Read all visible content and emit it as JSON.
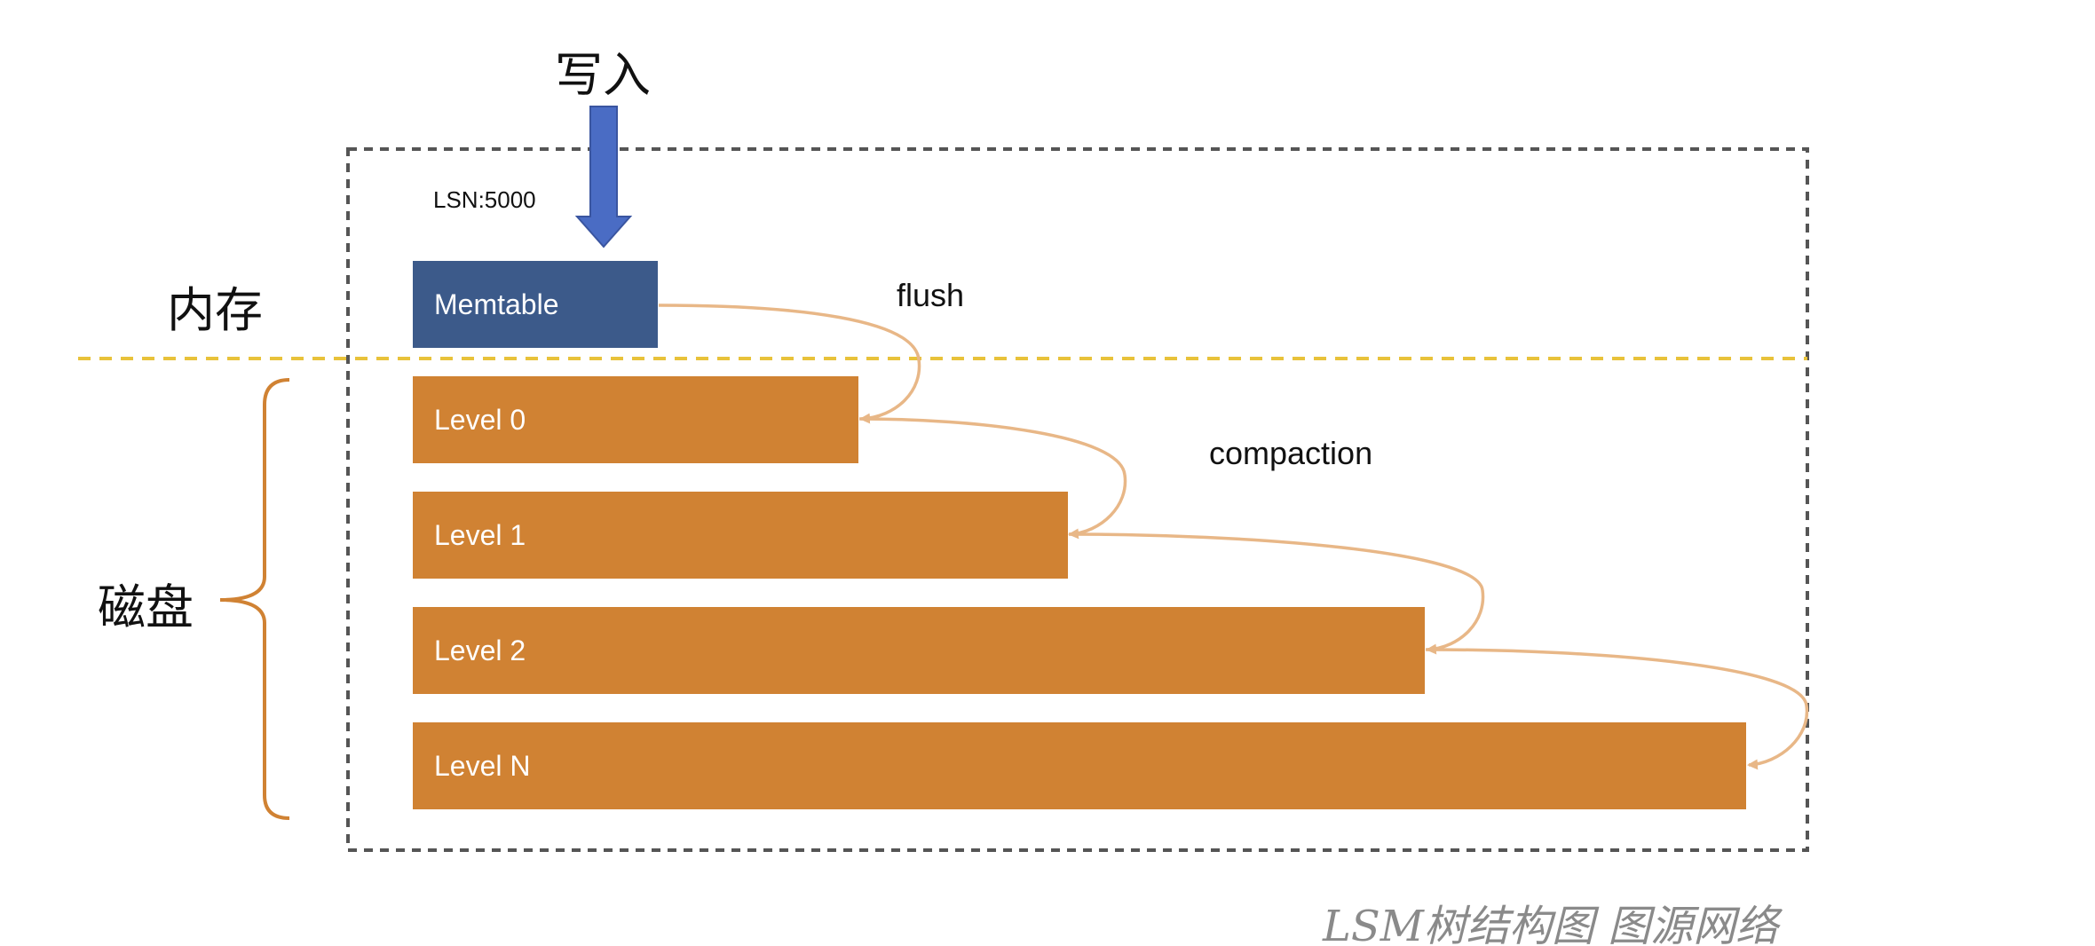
{
  "diagram": {
    "write_label": "写入",
    "lsn_label": "LSN:5000",
    "memory_label": "内存",
    "disk_label": "磁盘",
    "flush_label": "flush",
    "compaction_label": "compaction",
    "caption": "LSM树结构图 图源网络",
    "memtable_label": "Memtable",
    "levels": [
      "Level 0",
      "Level 1",
      "Level 2",
      "Level N"
    ],
    "colors": {
      "memtable": "#3c5a8a",
      "level": "#d08233",
      "write_arrow": "#4a6cc4",
      "boundary_line": "#e8c23a",
      "flow_arrow": "#e8b787",
      "bracket": "#d08233",
      "frame": "#555555"
    }
  }
}
